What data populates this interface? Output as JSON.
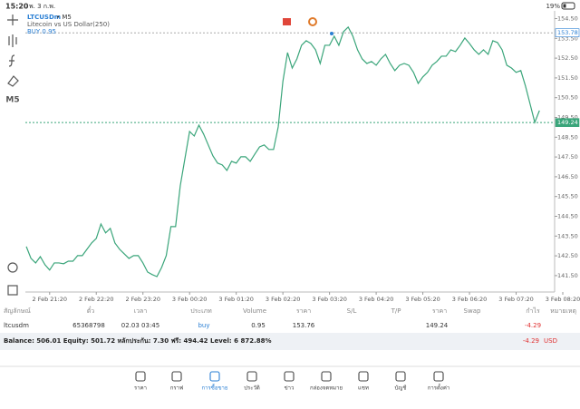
{
  "status_bar": {
    "time": "15:20",
    "date": "พ. 3 ก.พ.",
    "battery": "19%"
  },
  "toolbar": {
    "timeframe": "M5"
  },
  "chart_data": {
    "type": "line",
    "title_symbol": "LTCUSDm",
    "title_period": "• M5",
    "subtitle": "Litecoin vs US Dollar(250)",
    "position_label": "BUY 0.95",
    "color": "#3aa57a",
    "x": [
      -0.5,
      -0.4,
      -0.3,
      -0.2,
      -0.1,
      0,
      0.1,
      0.2,
      0.3,
      0.4,
      0.5,
      0.6,
      0.7,
      0.8,
      0.9,
      1,
      1.1,
      1.2,
      1.3,
      1.4,
      1.5,
      1.6,
      1.7,
      1.8,
      1.9,
      2,
      2.1,
      2.2,
      2.3,
      2.4,
      2.5,
      2.6,
      2.7,
      2.8,
      2.9,
      3,
      3.1,
      3.2,
      3.3,
      3.4,
      3.5,
      3.6,
      3.7,
      3.8,
      3.9,
      4,
      4.1,
      4.2,
      4.3,
      4.4,
      4.5,
      4.6,
      4.7,
      4.8,
      4.9,
      5,
      5.1,
      5.2,
      5.3,
      5.4,
      5.5,
      5.6,
      5.7,
      5.8,
      5.9,
      6,
      6.1,
      6.2,
      6.3,
      6.4,
      6.5,
      6.6,
      6.7,
      6.8,
      6.9,
      7,
      7.1,
      7.2,
      7.3,
      7.4,
      7.5,
      7.6,
      7.7,
      7.8,
      7.9,
      8,
      8.1,
      8.2,
      8.3,
      8.4,
      8.5,
      8.6,
      8.7,
      8.8,
      8.9,
      9,
      9.1,
      9.2,
      9.3,
      9.4,
      9.5,
      9.6,
      9.7,
      9.8,
      9.9,
      10,
      10.1,
      10.2,
      10.3,
      10.4,
      10.5
    ],
    "values": [
      142.97,
      142.37,
      142.14,
      142.46,
      142.05,
      141.78,
      142.14,
      142.14,
      142.1,
      142.23,
      142.23,
      142.51,
      142.51,
      142.83,
      143.15,
      143.38,
      144.11,
      143.66,
      143.89,
      143.15,
      142.83,
      142.6,
      142.37,
      142.51,
      142.51,
      142.14,
      141.68,
      141.55,
      141.45,
      141.91,
      142.51,
      143.98,
      143.98,
      146.04,
      147.42,
      148.79,
      148.56,
      149.11,
      148.66,
      148.11,
      147.56,
      147.19,
      147.1,
      146.82,
      147.28,
      147.19,
      147.51,
      147.51,
      147.28,
      147.65,
      148.01,
      148.11,
      147.88,
      147.88,
      149.02,
      151.32,
      152.78,
      152.0,
      152.46,
      153.15,
      153.38,
      153.24,
      152.92,
      152.23,
      153.15,
      153.15,
      153.61,
      153.15,
      153.84,
      154.07,
      153.61,
      152.92,
      152.46,
      152.23,
      152.33,
      152.14,
      152.46,
      152.69,
      152.23,
      151.87,
      152.14,
      152.23,
      152.14,
      151.78,
      151.22,
      151.55,
      151.78,
      152.14,
      152.33,
      152.6,
      152.6,
      152.92,
      152.83,
      153.15,
      153.52,
      153.24,
      152.92,
      152.69,
      152.92,
      152.69,
      153.38,
      153.29,
      152.92,
      152.14,
      152.0,
      151.78,
      151.87,
      151.09,
      150.17,
      149.25,
      149.85
    ],
    "xlim": [
      -0.52,
      11.0
    ],
    "xticks": [
      {
        "value": 0,
        "label": "2 Feb 21:20"
      },
      {
        "value": 1,
        "label": "2 Feb 22:20"
      },
      {
        "value": 2,
        "label": "2 Feb 23:20"
      },
      {
        "value": 3,
        "label": "3 Feb 00:20"
      },
      {
        "value": 4,
        "label": "3 Feb 01:20"
      },
      {
        "value": 5,
        "label": "3 Feb 02:20"
      },
      {
        "value": 6,
        "label": "3 Feb 03:20"
      },
      {
        "value": 7,
        "label": "3 Feb 04:20"
      },
      {
        "value": 8,
        "label": "3 Feb 05:20"
      },
      {
        "value": 9,
        "label": "3 Feb 06:20"
      },
      {
        "value": 10,
        "label": "3 Feb 07:20"
      },
      {
        "value": 11,
        "label": "3 Feb 08:20"
      }
    ],
    "ylim": [
      140.67,
      154.89
    ],
    "yticks": [
      {
        "value": 141.5,
        "label": "141.50"
      },
      {
        "value": 142.5,
        "label": "142.50"
      },
      {
        "value": 143.5,
        "label": "143.50"
      },
      {
        "value": 144.5,
        "label": "144.50"
      },
      {
        "value": 145.5,
        "label": "145.50"
      },
      {
        "value": 146.5,
        "label": "146.50"
      },
      {
        "value": 147.5,
        "label": "147.50"
      },
      {
        "value": 148.5,
        "label": "148.50"
      },
      {
        "value": 149.5,
        "label": "149.50"
      },
      {
        "value": 150.5,
        "label": "150.50"
      },
      {
        "value": 151.5,
        "label": "151.50"
      },
      {
        "value": 152.5,
        "label": "152.50"
      },
      {
        "value": 153.5,
        "label": "153.50"
      },
      {
        "value": 154.5,
        "label": "154.50"
      }
    ],
    "price_lines": [
      {
        "value": 153.78,
        "label": "153.78",
        "color": "#2a7fd4"
      },
      {
        "value": 149.24,
        "label": "149.24",
        "color": "#3aa57a"
      }
    ]
  },
  "positions": {
    "header": [
      "สัญลักษณ์",
      "ตั๋ว",
      "เวลา",
      "ประเภท",
      "Volume",
      "ราคา",
      "S/L",
      "T/P",
      "ราคา",
      "Swap",
      "กำไร",
      "หมายเหตุ"
    ],
    "row": {
      "symbol": "ltcusdm",
      "ticket": "65368798",
      "time": "02.03 03:45",
      "type": "buy",
      "volume": "0.95",
      "open_price": "153.76",
      "price": "149.24",
      "profit": "-4.29"
    }
  },
  "balance": {
    "text": "Balance: 506.01 Equity: 501.72 หลักประกัน: 7.30 ฟรี: 494.42 Level: 6 872.88%",
    "profit": "-4.29",
    "currency": "USD"
  },
  "nav": [
    "ราคา",
    "กราฟ",
    "การซื้อขาย",
    "ประวัติ",
    "ข่าว",
    "กล่องจดหมาย",
    "แชท",
    "บัญชี",
    "การตั้งค่า"
  ]
}
